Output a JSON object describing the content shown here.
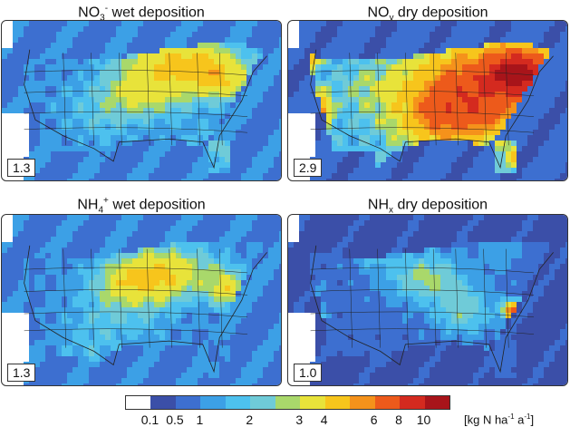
{
  "panels": [
    {
      "title_main": "NO",
      "title_sub": "3",
      "title_sup": "-",
      "title_rest": " wet deposition",
      "total": "1.3",
      "hot": [
        [
          0.62,
          0.25,
          0.28,
          0.22,
          4.5
        ],
        [
          0.5,
          0.45,
          0.25,
          0.2,
          3.2
        ],
        [
          0.78,
          0.35,
          0.15,
          0.2,
          3.5
        ],
        [
          0.35,
          0.6,
          0.2,
          0.2,
          2.0
        ],
        [
          0.78,
          0.78,
          0.2,
          0.18,
          2.4
        ]
      ],
      "base": 1.3,
      "ocean": 0.9
    },
    {
      "title_main": "NO",
      "title_sub": "y",
      "title_sup": "",
      "title_rest": " dry deposition",
      "total": "2.9",
      "hot": [
        [
          0.68,
          0.4,
          0.35,
          0.4,
          7.5
        ],
        [
          0.55,
          0.6,
          0.25,
          0.25,
          5.0
        ],
        [
          0.82,
          0.3,
          0.15,
          0.2,
          8.0
        ],
        [
          0.1,
          0.55,
          0.06,
          0.15,
          7.0
        ],
        [
          0.07,
          0.2,
          0.05,
          0.1,
          6.0
        ],
        [
          0.3,
          0.4,
          0.2,
          0.2,
          2.8
        ],
        [
          0.85,
          0.85,
          0.1,
          0.1,
          5.0
        ]
      ],
      "base": 2.0,
      "ocean": 0.6
    },
    {
      "title_main": "NH",
      "title_sub": "4",
      "title_sup": "+",
      "title_rest": " wet deposition",
      "total": "1.3",
      "hot": [
        [
          0.58,
          0.32,
          0.25,
          0.22,
          3.8
        ],
        [
          0.45,
          0.4,
          0.2,
          0.2,
          3.2
        ],
        [
          0.8,
          0.42,
          0.1,
          0.15,
          3.6
        ],
        [
          0.4,
          0.62,
          0.25,
          0.2,
          2.0
        ],
        [
          0.3,
          0.8,
          0.15,
          0.18,
          1.8
        ]
      ],
      "base": 1.2,
      "ocean": 0.9
    },
    {
      "title_main": "NH",
      "title_sub": "x",
      "title_sup": "",
      "title_rest": " dry deposition",
      "total": "1.0",
      "hot": [
        [
          0.48,
          0.35,
          0.2,
          0.2,
          2.8
        ],
        [
          0.62,
          0.55,
          0.15,
          0.2,
          2.5
        ],
        [
          0.8,
          0.55,
          0.05,
          0.08,
          7.0
        ],
        [
          0.08,
          0.55,
          0.05,
          0.15,
          3.0
        ],
        [
          0.3,
          0.2,
          0.1,
          0.15,
          1.8
        ],
        [
          0.75,
          0.2,
          0.1,
          0.15,
          1.6
        ]
      ],
      "base": 0.9,
      "ocean": 0.4
    }
  ],
  "colorbar": {
    "colors": [
      "#ffffff",
      "#3b4fa8",
      "#3d6fd0",
      "#3ca0e6",
      "#4dc1ee",
      "#6fcbd8",
      "#a9d86b",
      "#e8e33a",
      "#f7c51c",
      "#f5921b",
      "#ed5a1b",
      "#d42a1f",
      "#a8141a"
    ],
    "bounds": [
      0,
      0.1,
      0.5,
      1,
      1.5,
      2,
      2.5,
      3,
      4,
      5,
      6,
      8,
      10,
      100
    ],
    "ticks": [
      "0.1",
      "0.5",
      "1",
      "2",
      "3",
      "4",
      "6",
      "8",
      "10"
    ],
    "units_pre": "[kg N ha",
    "units_sup1": "-1",
    "units_mid": " a",
    "units_sup2": "-1",
    "units_post": "]"
  }
}
